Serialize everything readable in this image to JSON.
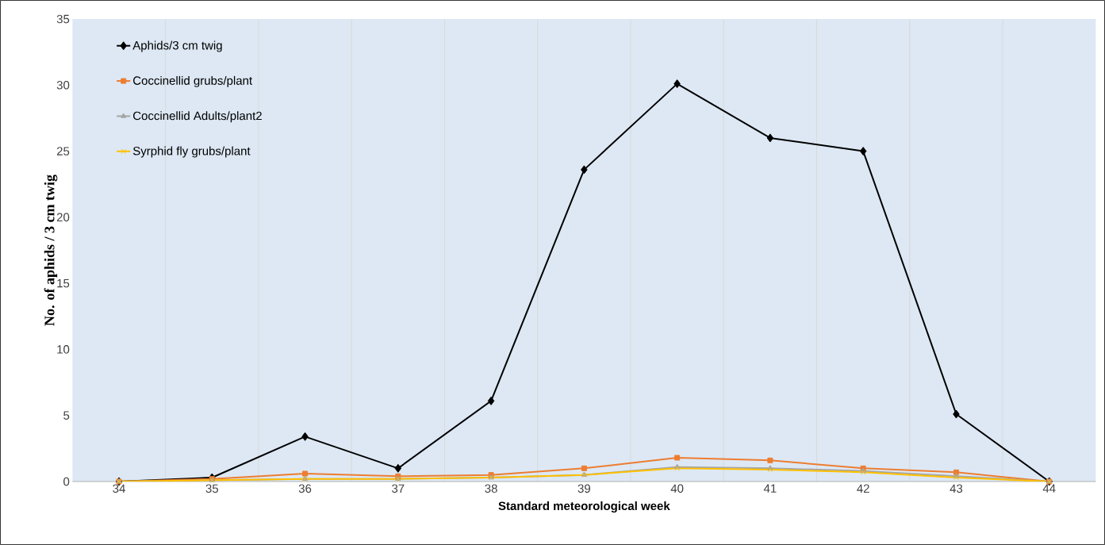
{
  "chart_data": {
    "type": "line",
    "xlabel": "Standard  meteorological week",
    "ylabel": "No. of aphids / 3 cm twig",
    "categories": [
      "34",
      "35",
      "36",
      "37",
      "38",
      "39",
      "40",
      "41",
      "42",
      "43",
      "44"
    ],
    "series": [
      {
        "name": "Aphids/3 cm twig",
        "color": "#000000",
        "marker": "diamond",
        "values": [
          0.0,
          0.3,
          3.4,
          1.0,
          6.1,
          23.6,
          30.1,
          26.0,
          25.0,
          5.1,
          0.0
        ]
      },
      {
        "name": "Coccinellid grubs/plant",
        "color": "#ed7d31",
        "marker": "square",
        "values": [
          0.0,
          0.2,
          0.6,
          0.4,
          0.5,
          1.0,
          1.8,
          1.6,
          1.0,
          0.7,
          0.0
        ]
      },
      {
        "name": "Coccinellid Adults/plant2",
        "color": "#a5a5a5",
        "marker": "triangle",
        "values": [
          0.0,
          0.1,
          0.2,
          0.2,
          0.3,
          0.5,
          1.1,
          1.0,
          0.8,
          0.4,
          0.0
        ]
      },
      {
        "name": "Syrphid fly grubs/plant",
        "color": "#ffc000",
        "marker": "cross",
        "values": [
          0.0,
          0.1,
          0.2,
          0.2,
          0.3,
          0.5,
          1.0,
          0.9,
          0.7,
          0.3,
          0.0
        ]
      }
    ],
    "ylim": [
      0,
      35
    ],
    "yticks": [
      0,
      5,
      10,
      15,
      20,
      25,
      30,
      35
    ],
    "grid": "x",
    "legend": "top left"
  }
}
